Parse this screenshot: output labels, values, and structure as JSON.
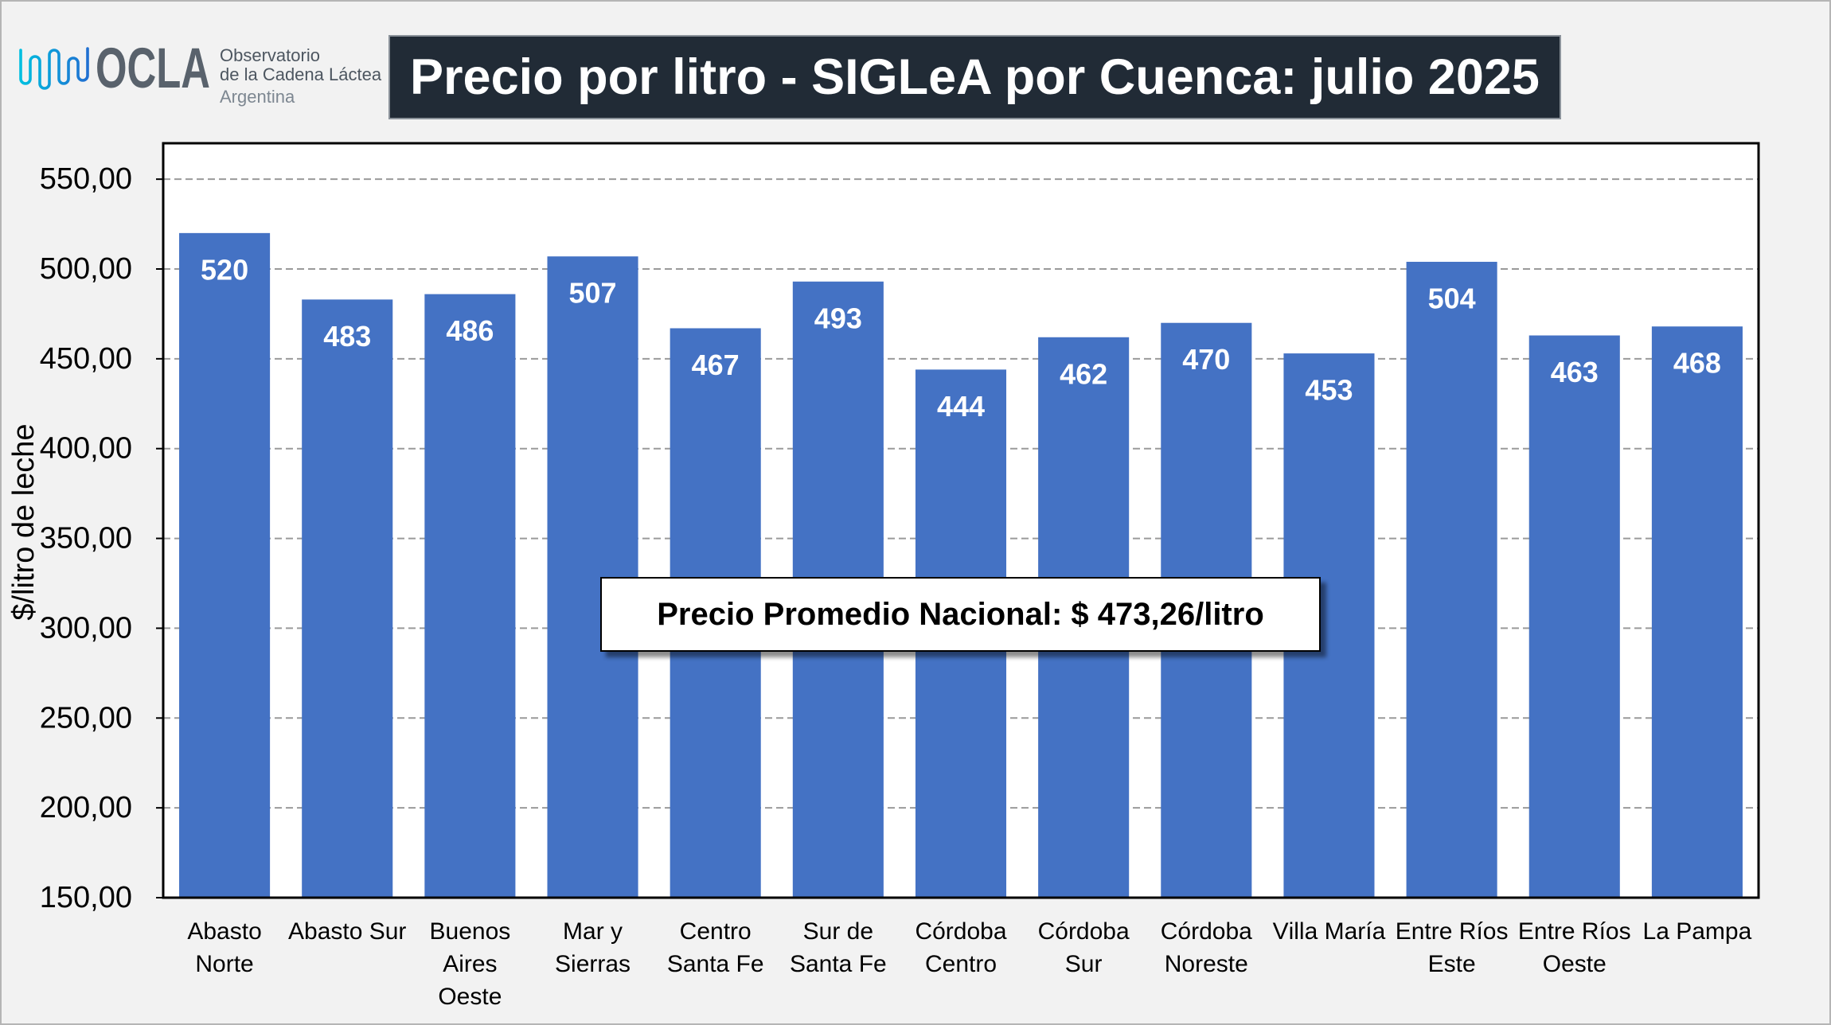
{
  "header": {
    "logo_icon": "milk-wave-icon",
    "logo_wordmark": "OCLA",
    "logo_lines": [
      "Observatorio",
      "de la Cadena Láctea",
      "Argentina"
    ]
  },
  "colors": {
    "page_background": "#f2f2f2",
    "title_background": "#212b36",
    "title_text": "#ffffff",
    "logo_gray": "#59626c",
    "logo_cyan": "#00bfe0",
    "logo_blue": "#1f6fd1",
    "gridline": "#9a9a9a"
  },
  "chart_data": {
    "type": "bar",
    "title": "Precio por litro - SIGLeA por Cuenca: julio 2025",
    "ylabel": "$/litro de leche",
    "categories": [
      "Abasto Norte",
      "Abasto Sur",
      "Buenos Aires Oeste",
      "Mar y Sierras",
      "Centro Santa Fe",
      "Sur de Santa Fe",
      "Córdoba Centro",
      "Córdoba Sur",
      "Córdoba Noreste",
      "Villa María",
      "Entre Ríos Este",
      "Entre Ríos Oeste",
      "La Pampa"
    ],
    "values": [
      520,
      483,
      486,
      507,
      467,
      493,
      444,
      462,
      470,
      453,
      504,
      463,
      468
    ],
    "ylim": [
      150,
      570
    ],
    "yticks": [
      150,
      200,
      250,
      300,
      350,
      400,
      450,
      500,
      550
    ],
    "ytick_labels": [
      "150,00",
      "200,00",
      "250,00",
      "300,00",
      "350,00",
      "400,00",
      "450,00",
      "500,00",
      "550,00"
    ],
    "grid": true,
    "legend": false,
    "bar_color": "#4472C4",
    "annotation": "Precio Promedio Nacional: $ 473,26/litro"
  }
}
